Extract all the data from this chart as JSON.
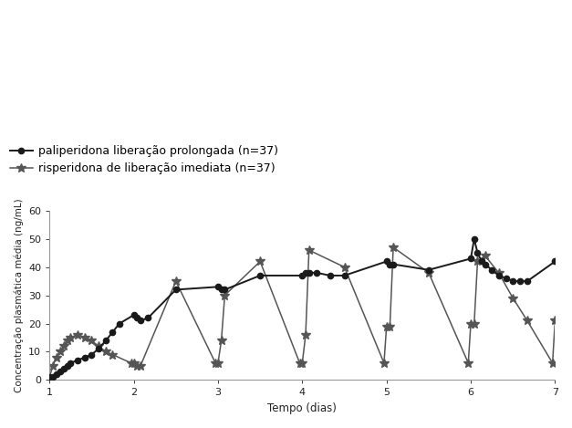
{
  "xlabel": "Tempo (dias)",
  "ylabel": "Concentração plasmática média (ng/mL)",
  "xlim": [
    1,
    7
  ],
  "ylim": [
    0,
    60
  ],
  "yticks": [
    0,
    10,
    20,
    30,
    40,
    50,
    60
  ],
  "xticks": [
    1,
    2,
    3,
    4,
    5,
    6,
    7
  ],
  "legend1": "paliperidona liberação prolongada (n=37)",
  "legend2": "risperidona de liberação imediata (n=37)",
  "paliperidona_x": [
    1.0,
    1.04,
    1.08,
    1.13,
    1.17,
    1.21,
    1.25,
    1.33,
    1.42,
    1.5,
    1.58,
    1.67,
    1.75,
    1.83,
    2.0,
    2.04,
    2.08,
    2.17,
    2.5,
    3.0,
    3.04,
    3.08,
    3.5,
    4.0,
    4.04,
    4.08,
    4.17,
    4.33,
    4.5,
    5.0,
    5.04,
    5.08,
    5.5,
    6.0,
    6.04,
    6.08,
    6.13,
    6.17,
    6.25,
    6.33,
    6.42,
    6.5,
    6.58,
    6.67,
    7.0,
    7.04
  ],
  "paliperidona_y": [
    1,
    1,
    2,
    3,
    4,
    5,
    6,
    7,
    8,
    9,
    11,
    14,
    17,
    20,
    23,
    22,
    21,
    22,
    32,
    33,
    32,
    32,
    37,
    37,
    38,
    38,
    38,
    37,
    37,
    42,
    41,
    41,
    39,
    43,
    50,
    45,
    42,
    41,
    39,
    37,
    36,
    35,
    35,
    35,
    42,
    42
  ],
  "risperidona_x": [
    1.0,
    1.04,
    1.08,
    1.13,
    1.17,
    1.21,
    1.25,
    1.33,
    1.42,
    1.5,
    1.58,
    1.67,
    1.75,
    1.97,
    2.0,
    2.04,
    2.08,
    2.5,
    2.97,
    3.0,
    3.04,
    3.08,
    3.5,
    3.97,
    4.0,
    4.04,
    4.08,
    4.5,
    4.97,
    5.0,
    5.04,
    5.08,
    5.5,
    5.97,
    6.0,
    6.04,
    6.08,
    6.17,
    6.33,
    6.5,
    6.67,
    6.97,
    7.0,
    7.04
  ],
  "risperidona_y": [
    1,
    5,
    8,
    10,
    12,
    14,
    15,
    16,
    15,
    14,
    12,
    10,
    9,
    6,
    6,
    5,
    5,
    35,
    6,
    6,
    14,
    30,
    42,
    6,
    6,
    16,
    46,
    40,
    6,
    19,
    19,
    47,
    38,
    6,
    20,
    20,
    42,
    44,
    38,
    29,
    21,
    6,
    21,
    20
  ],
  "color_paliperidona": "#1a1a1a",
  "color_risperidona": "#555555",
  "background_color": "#ffffff"
}
